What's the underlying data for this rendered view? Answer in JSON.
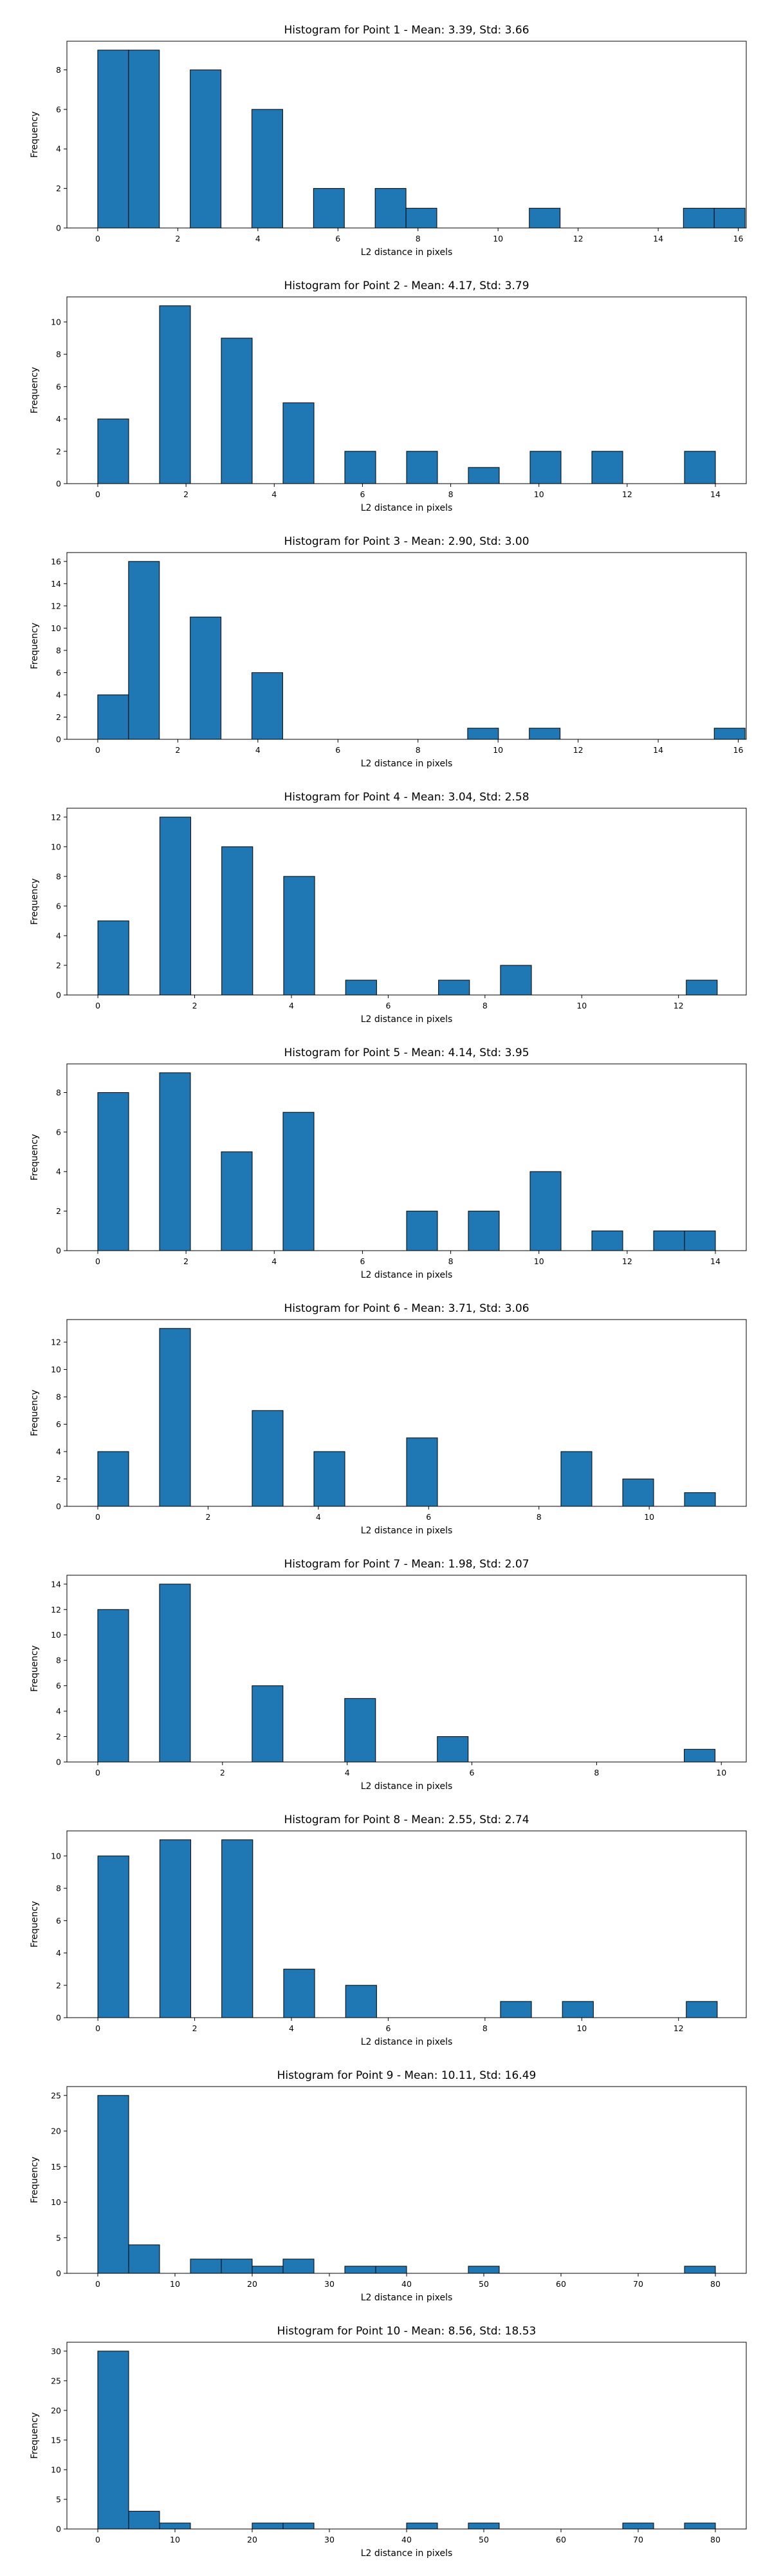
{
  "chart_data": [
    {
      "type": "bar",
      "title": "Histogram for Point 1 - Mean: 3.39, Std: 3.66",
      "xlabel": "L2 distance in pixels",
      "ylabel": "Frequency",
      "xlim": [
        -0.77,
        16.2
      ],
      "ylim": [
        0,
        9.45
      ],
      "xticks": [
        "0",
        "2",
        "4",
        "6",
        "8",
        "10",
        "12",
        "14",
        "16"
      ],
      "yticks": [
        "0",
        "2",
        "4",
        "6",
        "8"
      ],
      "bars": [
        {
          "x0": 0.0,
          "x1": 0.77,
          "count": 9
        },
        {
          "x0": 0.77,
          "x1": 1.54,
          "count": 9
        },
        {
          "x0": 2.31,
          "x1": 3.08,
          "count": 8
        },
        {
          "x0": 3.85,
          "x1": 4.62,
          "count": 6
        },
        {
          "x0": 5.39,
          "x1": 6.16,
          "count": 2
        },
        {
          "x0": 6.93,
          "x1": 7.7,
          "count": 2
        },
        {
          "x0": 7.7,
          "x1": 8.47,
          "count": 1
        },
        {
          "x0": 10.78,
          "x1": 11.55,
          "count": 1
        },
        {
          "x0": 14.63,
          "x1": 15.4,
          "count": 1
        },
        {
          "x0": 15.4,
          "x1": 16.17,
          "count": 1
        }
      ]
    },
    {
      "type": "bar",
      "title": "Histogram for Point 2 - Mean: 4.17, Std: 3.79",
      "xlabel": "L2 distance in pixels",
      "ylabel": "Frequency",
      "xlim": [
        -0.7,
        14.7
      ],
      "ylim": [
        0,
        11.55
      ],
      "xticks": [
        "0",
        "2",
        "4",
        "6",
        "8",
        "10",
        "12",
        "14"
      ],
      "yticks": [
        "0",
        "2",
        "4",
        "6",
        "8",
        "10"
      ],
      "bars": [
        {
          "x0": 0.0,
          "x1": 0.7,
          "count": 4
        },
        {
          "x0": 1.4,
          "x1": 2.1,
          "count": 11
        },
        {
          "x0": 2.8,
          "x1": 3.5,
          "count": 9
        },
        {
          "x0": 4.2,
          "x1": 4.9,
          "count": 5
        },
        {
          "x0": 5.6,
          "x1": 6.3,
          "count": 2
        },
        {
          "x0": 7.0,
          "x1": 7.7,
          "count": 2
        },
        {
          "x0": 8.4,
          "x1": 9.1,
          "count": 1
        },
        {
          "x0": 9.8,
          "x1": 10.5,
          "count": 2
        },
        {
          "x0": 11.2,
          "x1": 11.9,
          "count": 2
        },
        {
          "x0": 13.3,
          "x1": 14.0,
          "count": 2
        }
      ]
    },
    {
      "type": "bar",
      "title": "Histogram for Point 3 - Mean: 2.90, Std: 3.00",
      "xlabel": "L2 distance in pixels",
      "ylabel": "Frequency",
      "xlim": [
        -0.77,
        16.2
      ],
      "ylim": [
        0,
        16.8
      ],
      "xticks": [
        "0",
        "2",
        "4",
        "6",
        "8",
        "10",
        "12",
        "14",
        "16"
      ],
      "yticks": [
        "0",
        "2",
        "4",
        "6",
        "8",
        "10",
        "12",
        "14",
        "16"
      ],
      "bars": [
        {
          "x0": 0.0,
          "x1": 0.77,
          "count": 4
        },
        {
          "x0": 0.77,
          "x1": 1.54,
          "count": 16
        },
        {
          "x0": 2.31,
          "x1": 3.08,
          "count": 11
        },
        {
          "x0": 3.85,
          "x1": 4.62,
          "count": 6
        },
        {
          "x0": 9.24,
          "x1": 10.01,
          "count": 1
        },
        {
          "x0": 10.78,
          "x1": 11.55,
          "count": 1
        },
        {
          "x0": 15.4,
          "x1": 16.17,
          "count": 1
        }
      ]
    },
    {
      "type": "bar",
      "title": "Histogram for Point 4 - Mean: 3.04, Std: 2.58",
      "xlabel": "L2 distance in pixels",
      "ylabel": "Frequency",
      "xlim": [
        -0.64,
        13.4
      ],
      "ylim": [
        0,
        12.6
      ],
      "xticks": [
        "0",
        "2",
        "4",
        "6",
        "8",
        "10",
        "12"
      ],
      "yticks": [
        "0",
        "2",
        "4",
        "6",
        "8",
        "10",
        "12"
      ],
      "bars": [
        {
          "x0": 0.0,
          "x1": 0.64,
          "count": 5
        },
        {
          "x0": 1.28,
          "x1": 1.92,
          "count": 12
        },
        {
          "x0": 2.56,
          "x1": 3.2,
          "count": 10
        },
        {
          "x0": 3.84,
          "x1": 4.48,
          "count": 8
        },
        {
          "x0": 5.12,
          "x1": 5.76,
          "count": 1
        },
        {
          "x0": 7.04,
          "x1": 7.68,
          "count": 1
        },
        {
          "x0": 8.32,
          "x1": 8.96,
          "count": 2
        },
        {
          "x0": 12.16,
          "x1": 12.8,
          "count": 1
        }
      ]
    },
    {
      "type": "bar",
      "title": "Histogram for Point 5 - Mean: 4.14, Std: 3.95",
      "xlabel": "L2 distance in pixels",
      "ylabel": "Frequency",
      "xlim": [
        -0.7,
        14.7
      ],
      "ylim": [
        0,
        9.45
      ],
      "xticks": [
        "0",
        "2",
        "4",
        "6",
        "8",
        "10",
        "12",
        "14"
      ],
      "yticks": [
        "0",
        "2",
        "4",
        "6",
        "8"
      ],
      "bars": [
        {
          "x0": 0.0,
          "x1": 0.7,
          "count": 8
        },
        {
          "x0": 1.4,
          "x1": 2.1,
          "count": 9
        },
        {
          "x0": 2.8,
          "x1": 3.5,
          "count": 5
        },
        {
          "x0": 4.2,
          "x1": 4.9,
          "count": 7
        },
        {
          "x0": 7.0,
          "x1": 7.7,
          "count": 2
        },
        {
          "x0": 8.4,
          "x1": 9.1,
          "count": 2
        },
        {
          "x0": 9.8,
          "x1": 10.5,
          "count": 4
        },
        {
          "x0": 11.2,
          "x1": 11.9,
          "count": 1
        },
        {
          "x0": 12.6,
          "x1": 13.3,
          "count": 1
        },
        {
          "x0": 13.3,
          "x1": 14.0,
          "count": 1
        }
      ]
    },
    {
      "type": "bar",
      "title": "Histogram for Point 6 - Mean: 3.71, Std: 3.06",
      "xlabel": "L2 distance in pixels",
      "ylabel": "Frequency",
      "xlim": [
        -0.56,
        11.76
      ],
      "ylim": [
        0,
        13.65
      ],
      "xticks": [
        "2",
        "4",
        "6",
        "8",
        "10"
      ],
      "yticks": [
        "0",
        "2",
        "4",
        "6",
        "8",
        "10",
        "12"
      ],
      "extra_tick_label": "0",
      "bars": [
        {
          "x0": 0.0,
          "x1": 0.56,
          "count": 4
        },
        {
          "x0": 1.12,
          "x1": 1.68,
          "count": 13
        },
        {
          "x0": 2.8,
          "x1": 3.36,
          "count": 7
        },
        {
          "x0": 3.92,
          "x1": 4.48,
          "count": 4
        },
        {
          "x0": 5.6,
          "x1": 6.16,
          "count": 5
        },
        {
          "x0": 8.4,
          "x1": 8.96,
          "count": 4
        },
        {
          "x0": 9.52,
          "x1": 10.08,
          "count": 2
        },
        {
          "x0": 10.64,
          "x1": 11.2,
          "count": 1
        }
      ]
    },
    {
      "type": "bar",
      "title": "Histogram for Point 7 - Mean: 1.98, Std: 2.07",
      "xlabel": "L2 distance in pixels",
      "ylabel": "Frequency",
      "xlim": [
        -0.495,
        10.4
      ],
      "ylim": [
        0,
        14.7
      ],
      "xticks": [
        "0",
        "2",
        "4",
        "6",
        "8",
        "10"
      ],
      "yticks": [
        "0",
        "2",
        "4",
        "6",
        "8",
        "10",
        "12",
        "14"
      ],
      "bars": [
        {
          "x0": 0.0,
          "x1": 0.495,
          "count": 12
        },
        {
          "x0": 0.99,
          "x1": 1.485,
          "count": 14
        },
        {
          "x0": 2.475,
          "x1": 2.97,
          "count": 6
        },
        {
          "x0": 3.96,
          "x1": 4.455,
          "count": 5
        },
        {
          "x0": 5.445,
          "x1": 5.94,
          "count": 2
        },
        {
          "x0": 9.405,
          "x1": 9.9,
          "count": 1
        }
      ]
    },
    {
      "type": "bar",
      "title": "Histogram for Point 8 - Mean: 2.55, Std: 2.74",
      "xlabel": "L2 distance in pixels",
      "ylabel": "Frequency",
      "xlim": [
        -0.64,
        13.4
      ],
      "ylim": [
        0,
        11.55
      ],
      "xticks": [
        "0",
        "2",
        "4",
        "6",
        "8",
        "10",
        "12"
      ],
      "yticks": [
        "0",
        "2",
        "4",
        "6",
        "8",
        "10"
      ],
      "bars": [
        {
          "x0": 0.0,
          "x1": 0.64,
          "count": 10
        },
        {
          "x0": 1.28,
          "x1": 1.92,
          "count": 11
        },
        {
          "x0": 2.56,
          "x1": 3.2,
          "count": 11
        },
        {
          "x0": 3.84,
          "x1": 4.48,
          "count": 3
        },
        {
          "x0": 5.12,
          "x1": 5.76,
          "count": 2
        },
        {
          "x0": 8.32,
          "x1": 8.96,
          "count": 1
        },
        {
          "x0": 9.6,
          "x1": 10.24,
          "count": 1
        },
        {
          "x0": 12.16,
          "x1": 12.8,
          "count": 1
        }
      ]
    },
    {
      "type": "bar",
      "title": "Histogram for Point 9 - Mean: 10.11, Std: 16.49",
      "xlabel": "L2 distance in pixels",
      "ylabel": "Frequency",
      "xlim": [
        -4.0,
        84.0
      ],
      "ylim": [
        0,
        26.25
      ],
      "xticks": [
        "0",
        "10",
        "20",
        "30",
        "40",
        "50",
        "60",
        "70",
        "80"
      ],
      "yticks": [
        "0",
        "5",
        "10",
        "15",
        "20",
        "25"
      ],
      "bars": [
        {
          "x0": 0.0,
          "x1": 4.0,
          "count": 25
        },
        {
          "x0": 4.0,
          "x1": 8.0,
          "count": 4
        },
        {
          "x0": 12.0,
          "x1": 16.0,
          "count": 2
        },
        {
          "x0": 16.0,
          "x1": 20.0,
          "count": 2
        },
        {
          "x0": 20.0,
          "x1": 24.0,
          "count": 1
        },
        {
          "x0": 24.0,
          "x1": 28.0,
          "count": 2
        },
        {
          "x0": 32.0,
          "x1": 36.0,
          "count": 1
        },
        {
          "x0": 36.0,
          "x1": 40.0,
          "count": 1
        },
        {
          "x0": 48.0,
          "x1": 52.0,
          "count": 1
        },
        {
          "x0": 76.0,
          "x1": 80.0,
          "count": 1
        }
      ]
    },
    {
      "type": "bar",
      "title": "Histogram for Point 10 - Mean: 8.56, Std: 18.53",
      "xlabel": "L2 distance in pixels",
      "ylabel": "Frequency",
      "xlim": [
        -4.0,
        84.0
      ],
      "ylim": [
        0,
        31.5
      ],
      "xticks": [
        "0",
        "10",
        "20",
        "30",
        "40",
        "50",
        "60",
        "70",
        "80"
      ],
      "yticks": [
        "0",
        "5",
        "10",
        "15",
        "20",
        "25",
        "30"
      ],
      "bars": [
        {
          "x0": 0.0,
          "x1": 4.0,
          "count": 30
        },
        {
          "x0": 4.0,
          "x1": 8.0,
          "count": 3
        },
        {
          "x0": 8.0,
          "x1": 12.0,
          "count": 1
        },
        {
          "x0": 20.0,
          "x1": 24.0,
          "count": 1
        },
        {
          "x0": 24.0,
          "x1": 28.0,
          "count": 1
        },
        {
          "x0": 40.0,
          "x1": 44.0,
          "count": 1
        },
        {
          "x0": 48.0,
          "x1": 52.0,
          "count": 1
        },
        {
          "x0": 68.0,
          "x1": 72.0,
          "count": 1
        },
        {
          "x0": 76.0,
          "x1": 80.0,
          "count": 1
        }
      ]
    }
  ],
  "colors": {
    "bar_fill": "#1f77b4",
    "bar_edge": "#000000",
    "axis": "#000000"
  }
}
